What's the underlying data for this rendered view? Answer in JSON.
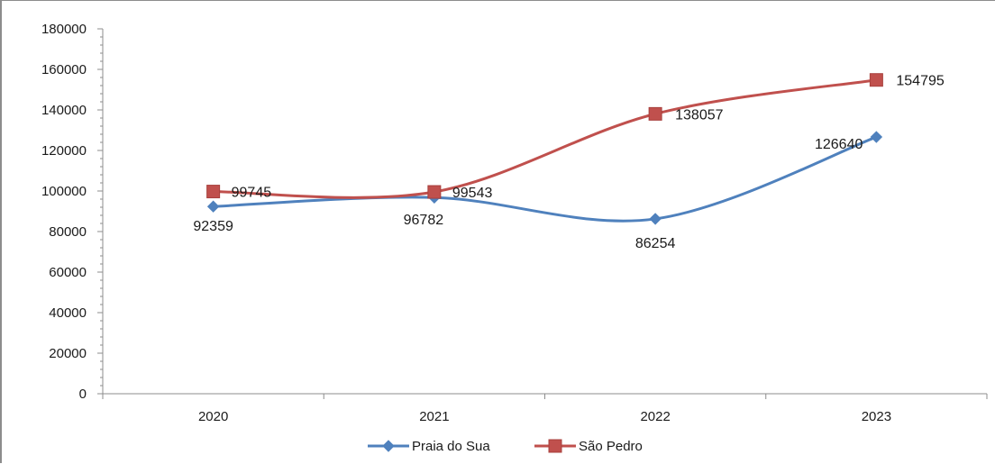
{
  "chart_data": {
    "type": "line",
    "categories": [
      "2020",
      "2021",
      "2022",
      "2023"
    ],
    "series": [
      {
        "name": "Praia do Sua",
        "values": [
          92359,
          96782,
          86254,
          126640
        ],
        "labels": [
          "92359",
          "96782",
          "86254",
          "126640"
        ],
        "color": "#4f81bd",
        "marker": "diamond"
      },
      {
        "name": "São Pedro",
        "values": [
          99745,
          99543,
          138057,
          154795
        ],
        "labels": [
          "99745",
          "99543",
          "138057",
          "154795"
        ],
        "color": "#c0504d",
        "marker": "square"
      }
    ],
    "y_ticks": [
      "0",
      "20000",
      "40000",
      "60000",
      "80000",
      "100000",
      "120000",
      "140000",
      "160000",
      "180000"
    ],
    "ylim": [
      0,
      180000
    ],
    "title": "",
    "xlabel": "",
    "ylabel": "",
    "grid": false,
    "legend_position": "bottom"
  }
}
